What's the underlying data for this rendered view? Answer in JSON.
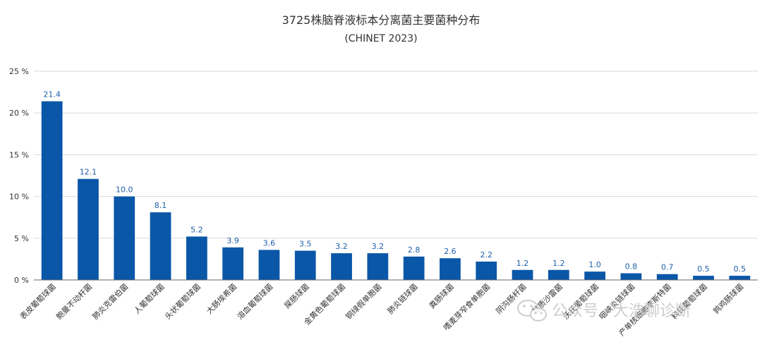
{
  "chart_data": {
    "type": "bar",
    "title": "3725株脑脊液标本分离菌主要菌种分布",
    "subtitle": "(CHINET 2023)",
    "categories": [
      "表皮葡萄球菌",
      "鲍曼不动杆菌",
      "肺炎克雷伯菌",
      "人葡萄球菌",
      "头状葡萄球菌",
      "大肠埃希菌",
      "溶血葡萄球菌",
      "屎肠球菌",
      "金黄色葡萄球菌",
      "铜绿假单胞菌",
      "肺炎链球菌",
      "粪肠球菌",
      "嗜麦芽窄食单胞菌",
      "阴沟肠杆菌",
      "黏质沙雷菌",
      "沃氏葡萄球菌",
      "咽峡炎链球菌",
      "产单核细胞李斯特菌",
      "科氏葡萄球菌",
      "鹑鸡肠球菌"
    ],
    "values": [
      21.4,
      12.1,
      10.0,
      8.1,
      5.2,
      3.9,
      3.6,
      3.5,
      3.2,
      3.2,
      2.8,
      2.6,
      2.2,
      1.2,
      1.2,
      1.0,
      0.8,
      0.7,
      0.5,
      0.5
    ],
    "value_labels": [
      "21.4",
      "12.1",
      "10.0",
      "8.1",
      "5.2",
      "3.9",
      "3.6",
      "3.5",
      "3.2",
      "3.2",
      "2.8",
      "2.6",
      "2.2",
      "1.2",
      "1.2",
      "1.0",
      "0.8",
      "0.7",
      "0.5",
      "0.5"
    ],
    "ylim": [
      0,
      25
    ],
    "yticks": [
      "0 %",
      "5 %",
      "10 %",
      "15 %",
      "20 %",
      "25 %"
    ],
    "grid": true,
    "bar_color": "#0a57a8",
    "label_color": "#1f5fa8"
  },
  "watermark": {
    "text": "公众号 · 大浩聊诊断",
    "icon": "wechat-icon"
  }
}
